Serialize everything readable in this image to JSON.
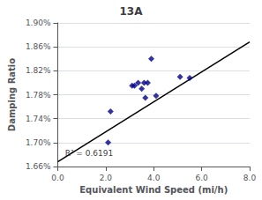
{
  "chart_data": {
    "type": "scatter",
    "title": "13A",
    "xlabel": "Equivalent Wind Speed (mi/h)",
    "ylabel": "Damping Ratio",
    "xlim": [
      0.0,
      8.0
    ],
    "ylim": [
      0.0166,
      0.019
    ],
    "xticks": [
      {
        "value": 0.0,
        "label": "0.0"
      },
      {
        "value": 2.0,
        "label": "2.0"
      },
      {
        "value": 4.0,
        "label": "4.0"
      },
      {
        "value": 6.0,
        "label": "6.0"
      },
      {
        "value": 8.0,
        "label": "8.0"
      }
    ],
    "yticks": [
      {
        "value": 0.0166,
        "label": "1.66%"
      },
      {
        "value": 0.017,
        "label": "1.70%"
      },
      {
        "value": 0.0174,
        "label": "1.74%"
      },
      {
        "value": 0.0178,
        "label": "1.78%"
      },
      {
        "value": 0.0182,
        "label": "1.82%"
      },
      {
        "value": 0.0186,
        "label": "1.86%"
      },
      {
        "value": 0.019,
        "label": "1.90%"
      }
    ],
    "grid": true,
    "series": [
      {
        "type": "scatter",
        "marker": "diamond",
        "color": "#00008B",
        "x": [
          2.1,
          2.2,
          3.1,
          3.2,
          3.35,
          3.5,
          3.6,
          3.65,
          3.75,
          3.9,
          4.1,
          5.1,
          5.5
        ],
        "values": [
          0.017,
          0.01752,
          0.01795,
          0.01795,
          0.018,
          0.0179,
          0.018,
          0.01775,
          0.018,
          0.0184,
          0.01778,
          0.0181,
          0.01808
        ]
      },
      {
        "type": "line",
        "color": "#000000",
        "x": [
          0.0,
          8.0
        ],
        "values": [
          0.01668,
          0.01868
        ]
      }
    ],
    "annotations": [
      {
        "text": "R² = 0.6191",
        "x": 0.3,
        "y": 0.01676
      }
    ]
  }
}
